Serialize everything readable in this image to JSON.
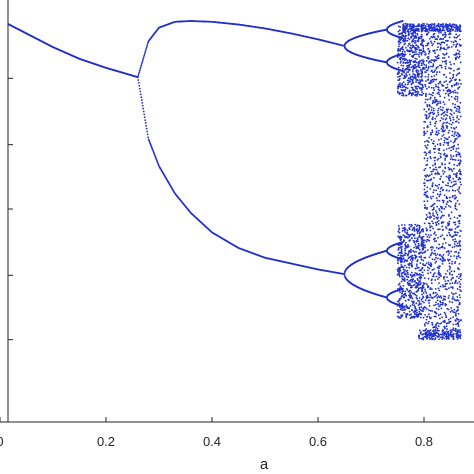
{
  "chart_data": {
    "type": "scatter",
    "title": "",
    "xlabel": "a",
    "ylabel": "",
    "xlim": [
      0,
      0.87
    ],
    "ylim": [
      0,
      1
    ],
    "x_ticks": [
      {
        "value": 0,
        "label": "0"
      },
      {
        "value": 0.2,
        "label": "0.2"
      },
      {
        "value": 0.4,
        "label": "0.4"
      },
      {
        "value": 0.6,
        "label": "0.6"
      },
      {
        "value": 0.8,
        "label": "0.8"
      }
    ],
    "y_tick_values": [
      0.165,
      0.33,
      0.5,
      0.665,
      0.835
    ],
    "grid": false,
    "legend": "none",
    "marker_color": "#1f2fd0",
    "series": [
      {
        "description_points": "fixed point branch",
        "x": [
          0,
          0.05,
          0.1,
          0.15,
          0.2,
          0.25,
          0.26
        ],
        "y": [
          0.985,
          0.95,
          0.915,
          0.885,
          0.862,
          0.842,
          0.838
        ]
      },
      {
        "x": [
          0.26,
          0.28,
          0.3,
          0.33,
          0.36,
          0.4,
          0.45,
          0.5,
          0.55,
          0.6,
          0.65
        ],
        "y": [
          0.838,
          0.93,
          0.965,
          0.98,
          0.982,
          0.98,
          0.973,
          0.963,
          0.95,
          0.935,
          0.918
        ]
      },
      {
        "x": [
          0.26,
          0.28,
          0.3,
          0.33,
          0.36,
          0.4,
          0.45,
          0.5,
          0.55,
          0.6,
          0.65
        ],
        "y": [
          0.838,
          0.68,
          0.61,
          0.54,
          0.49,
          0.44,
          0.4,
          0.375,
          0.36,
          0.345,
          0.333
        ]
      }
    ]
  }
}
